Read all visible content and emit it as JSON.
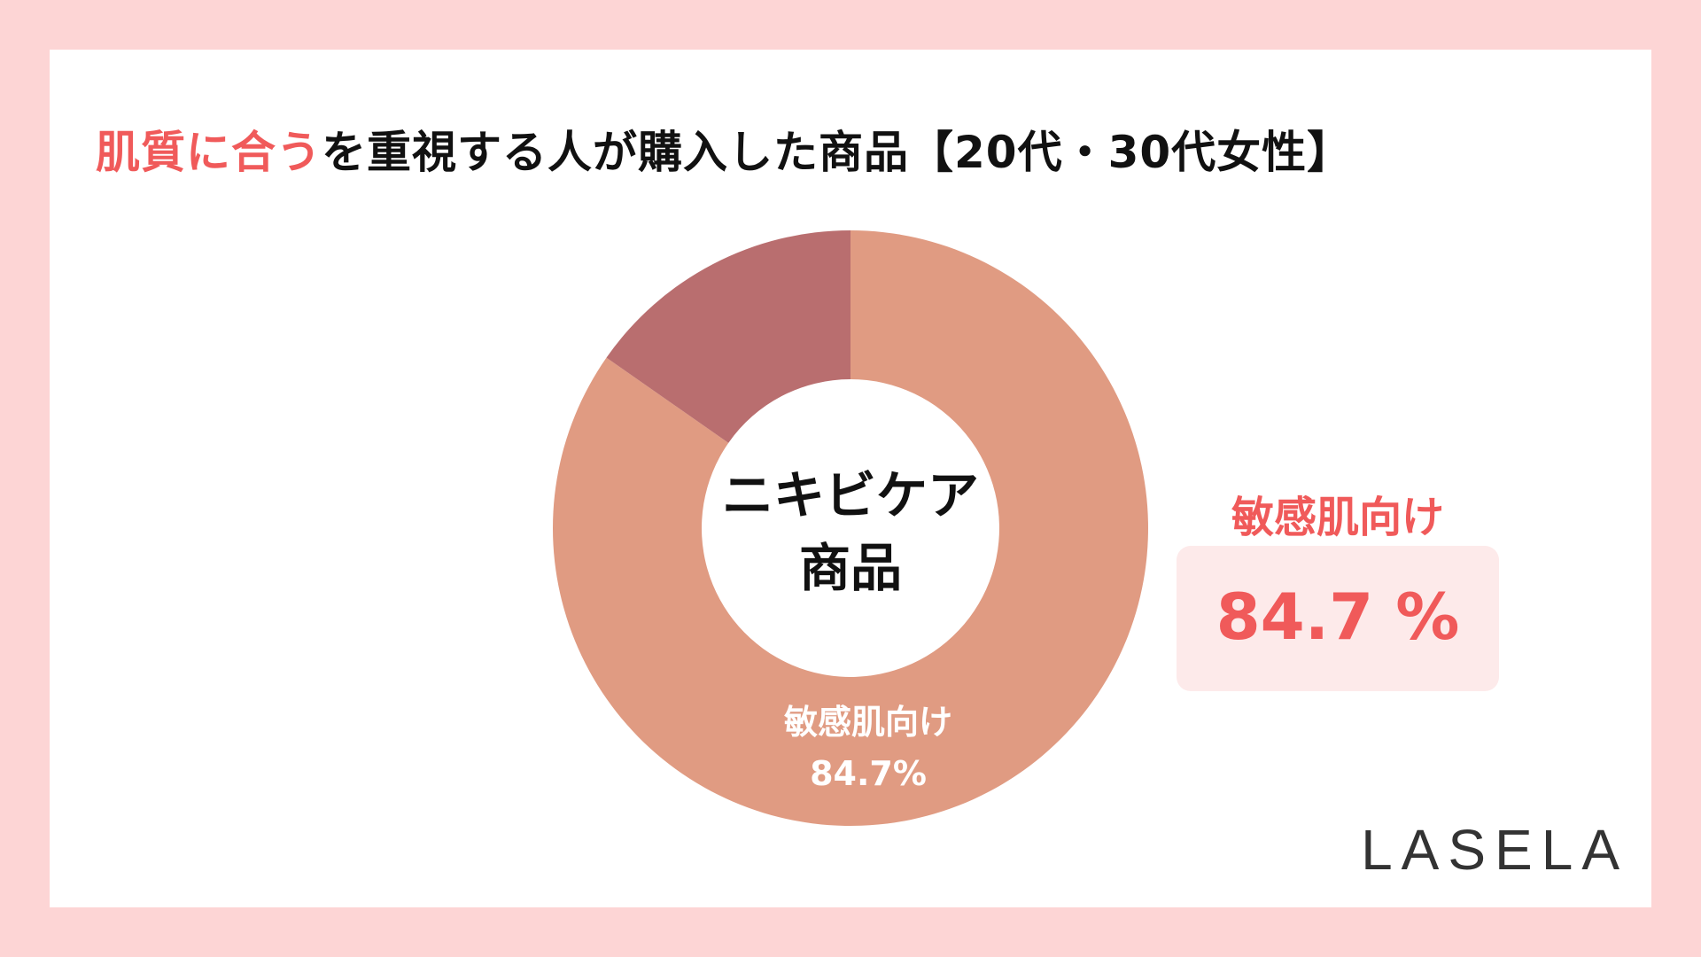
{
  "colors": {
    "background": "#fdd5d5",
    "panel": "#ffffff",
    "accent": "#f05a5a",
    "slice_main": "#e09b82",
    "slice_other": "#b96e6f",
    "callout_bg": "#fdeaea"
  },
  "title": {
    "highlight": "肌質に合う",
    "rest": "を重視する人が購入した商品【20代・30代女性】"
  },
  "center": {
    "line1": "ニキビケア",
    "line2": "商品"
  },
  "slice_label": {
    "name": "敏感肌向け",
    "value": "84.7%"
  },
  "callout": {
    "title": "敏感肌向け",
    "value": "84.7 %"
  },
  "logo": "LASELA",
  "chart_data": {
    "type": "pie",
    "title": "肌質に合うを重視する人が購入した商品【20代・30代女性】",
    "center_label": "ニキビケア商品",
    "slices": [
      {
        "name": "敏感肌向け",
        "value": 84.7,
        "color": "#e09b82"
      },
      {
        "name": "",
        "value": 15.3,
        "color": "#b96e6f"
      }
    ]
  }
}
